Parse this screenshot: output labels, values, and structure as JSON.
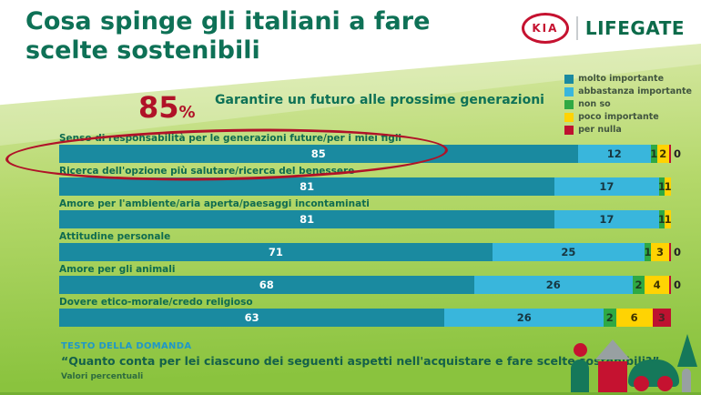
{
  "title_lines": [
    "Cosa spinge gli italiani a fare",
    "scelte sostenibili"
  ],
  "logo": {
    "kia": "KIA",
    "lifegate": "LIFEGATE"
  },
  "annotation": {
    "value": "85",
    "percent_sign": "%"
  },
  "subtitle": "Garantire un futuro alle prossime generazioni",
  "legend": [
    {
      "label": "molto importante",
      "color": "#1a8aa0"
    },
    {
      "label": "abbastanza importante",
      "color": "#39b6dc"
    },
    {
      "label": "non so",
      "color": "#2fa944"
    },
    {
      "label": "poco importante",
      "color": "#ffd303"
    },
    {
      "label": "per nulla",
      "color": "#be1230"
    }
  ],
  "chart_data": {
    "type": "bar",
    "orientation": "horizontal",
    "stacked": true,
    "xlim": [
      0,
      100
    ],
    "units": "percent",
    "categories": [
      "Senso di responsabilità per le generazioni future/per i miei figli",
      "Ricerca dell'opzione più salutare/ricerca del benessere",
      "Amore per l'ambiente/aria aperta/paesaggi incontaminati",
      "Attitudine personale",
      "Amore per gli animali",
      "Dovere etico-morale/credo religioso"
    ],
    "series": [
      {
        "name": "molto importante",
        "color": "#1a8aa0",
        "label_color": "#ffffff",
        "values": [
          85,
          81,
          81,
          71,
          68,
          63
        ]
      },
      {
        "name": "abbastanza importante",
        "color": "#39b6dc",
        "label_color": "#173640",
        "values": [
          12,
          17,
          17,
          25,
          26,
          26
        ]
      },
      {
        "name": "non so",
        "color": "#2fa944",
        "label_color": "#1d3a20",
        "values": [
          1,
          1,
          1,
          1,
          2,
          2
        ]
      },
      {
        "name": "poco importante",
        "color": "#ffd303",
        "label_color": "#3d3200",
        "values": [
          2,
          1,
          1,
          3,
          4,
          6
        ]
      },
      {
        "name": "per nulla",
        "color": "#be1230",
        "label_color": "#4a2426",
        "values": [
          0,
          null,
          null,
          0,
          0,
          3
        ]
      }
    ],
    "highlighted_category_value": "85%",
    "title": "Garantire un futuro alle prossime generazioni",
    "note": "Valori percentuali",
    "legend_position": "top-right",
    "grid": false
  },
  "footer": {
    "section_label": "TESTO DELLA DOMANDA",
    "question": "“Quanto conta per lei ciascuno dei seguenti aspetti nell'acquistare e fare scelte sostenibili?”",
    "note": "Valori percentuali"
  }
}
